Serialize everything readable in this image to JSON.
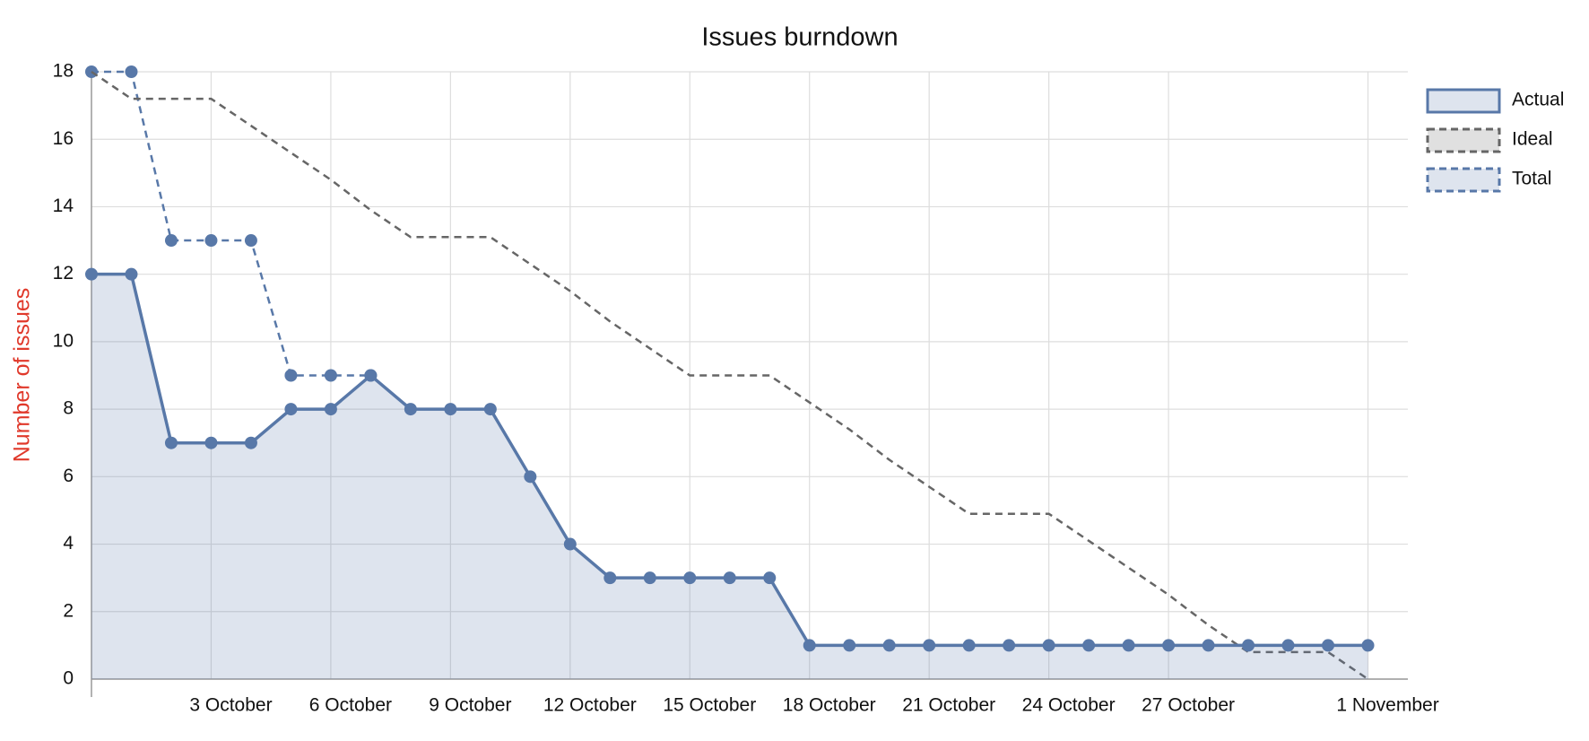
{
  "chart_data": {
    "type": "line",
    "title": "Issues burndown",
    "y_label": "Number of issues",
    "categories": [
      null,
      null,
      null,
      "3 October",
      null,
      null,
      "6 October",
      null,
      null,
      "9 October",
      null,
      null,
      "12 October",
      null,
      null,
      "15 October",
      null,
      null,
      "18 October",
      null,
      null,
      "21 October",
      null,
      null,
      "24 October",
      null,
      null,
      "27 October",
      null,
      null,
      null,
      null,
      "1 November"
    ],
    "series": [
      {
        "name": "Actual",
        "color": "#5878a8",
        "fill": true,
        "dashed": false,
        "markers": true,
        "values": [
          12,
          12,
          7,
          7,
          7,
          8,
          8,
          9,
          8,
          8,
          8,
          6,
          4,
          3,
          3,
          3,
          3,
          3,
          1,
          1,
          1,
          1,
          1,
          1,
          1,
          1,
          1,
          1,
          1,
          1,
          1,
          1,
          1
        ]
      },
      {
        "name": "Ideal",
        "color": "#666666",
        "fill": false,
        "dashed": true,
        "markers": false,
        "values": [
          18,
          17.2,
          17.2,
          17.2,
          16.4,
          15.6,
          14.8,
          13.9,
          13.1,
          13.1,
          13.1,
          12.3,
          11.5,
          10.6,
          9.8,
          9,
          9,
          9,
          8.2,
          7.4,
          6.5,
          5.7,
          4.9,
          4.9,
          4.9,
          4.1,
          3.3,
          2.5,
          1.6,
          0.8,
          0.8,
          0.8,
          0
        ]
      },
      {
        "name": "Total",
        "color": "#5878a8",
        "fill": false,
        "dashed": true,
        "markers": true,
        "values": [
          18,
          18,
          13,
          13,
          13,
          9,
          9,
          9,
          null,
          null,
          null,
          null,
          null,
          null,
          null,
          null,
          null,
          null,
          null,
          null,
          null,
          null,
          null,
          null,
          null,
          null,
          null,
          null,
          null,
          null,
          null,
          null,
          null
        ]
      }
    ],
    "ylim": [
      0,
      18
    ],
    "yticks": [
      0,
      2,
      4,
      6,
      8,
      10,
      12,
      14,
      16,
      18
    ],
    "grid": true,
    "legend": "right"
  }
}
